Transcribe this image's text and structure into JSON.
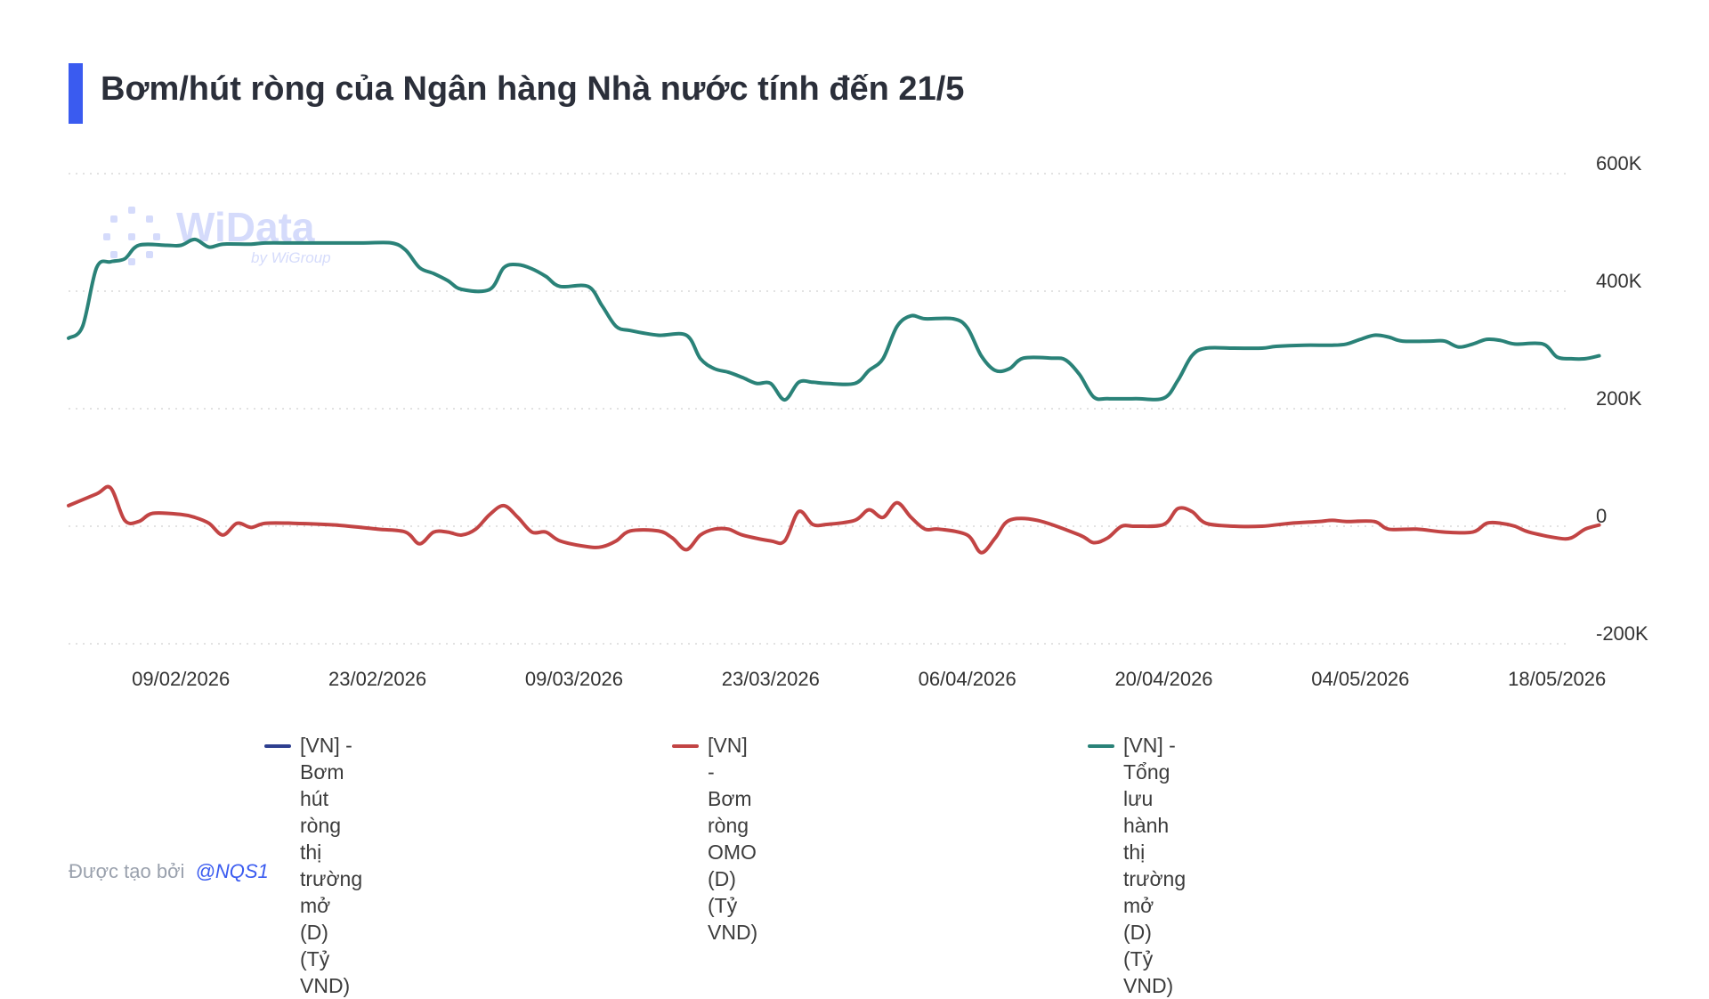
{
  "title": "Bơm/hút ròng của Ngân hàng Nhà nước tính đến 21/5",
  "watermark": {
    "brand": "WiData",
    "sub": "by WiGroup"
  },
  "footer": {
    "label": "Được tạo bởi",
    "author": "@NQS1"
  },
  "colors": {
    "accent": "#3a5bf0",
    "series_blue": "#2e3f8f",
    "series_red": "#c24444",
    "series_teal": "#2a8278",
    "grid": "#d9d9d9"
  },
  "chart_data": {
    "type": "line",
    "title": "Bơm/hút ròng của Ngân hàng Nhà nước tính đến 21/5",
    "ylim": [
      -200000,
      600000
    ],
    "y_ticks": [
      "600K",
      "400K",
      "200K",
      "0",
      "-200K"
    ],
    "y_tick_values": [
      600000,
      400000,
      200000,
      0,
      -200000
    ],
    "x_tick_labels": [
      "09/02/2026",
      "23/02/2026",
      "09/03/2026",
      "23/03/2026",
      "06/04/2026",
      "20/04/2026",
      "04/05/2026",
      "18/05/2026"
    ],
    "x_range": [
      "01/02/2026",
      "19/05/2026"
    ],
    "grid": true,
    "legend_position": "bottom",
    "series": [
      {
        "name": "[VN] - Bơm hút ròng thị trường mở\n(D) (Tỷ VND)",
        "color": "#2e3f8f",
        "points": []
      },
      {
        "name": "[VN] - Bơm ròng OMO (D) (Tỷ VND)",
        "color": "#c24444",
        "points": [
          [
            "01/02/2026",
            35000
          ],
          [
            "03/02/2026",
            55000
          ],
          [
            "04/02/2026",
            65000
          ],
          [
            "05/02/2026",
            10000
          ],
          [
            "06/02/2026",
            8000
          ],
          [
            "07/02/2026",
            22000
          ],
          [
            "09/02/2026",
            20000
          ],
          [
            "10/02/2026",
            15000
          ],
          [
            "11/02/2026",
            5000
          ],
          [
            "12/02/2026",
            -15000
          ],
          [
            "13/02/2026",
            5000
          ],
          [
            "14/02/2026",
            -2000
          ],
          [
            "15/02/2026",
            5000
          ],
          [
            "17/02/2026",
            5000
          ],
          [
            "20/02/2026",
            2000
          ],
          [
            "23/02/2026",
            -5000
          ],
          [
            "25/02/2026",
            -10000
          ],
          [
            "26/02/2026",
            -30000
          ],
          [
            "27/02/2026",
            -10000
          ],
          [
            "28/02/2026",
            -10000
          ],
          [
            "01/03/2026",
            -15000
          ],
          [
            "02/03/2026",
            -5000
          ],
          [
            "03/03/2026",
            20000
          ],
          [
            "04/03/2026",
            35000
          ],
          [
            "05/03/2026",
            15000
          ],
          [
            "06/03/2026",
            -10000
          ],
          [
            "07/03/2026",
            -10000
          ],
          [
            "08/03/2026",
            -25000
          ],
          [
            "10/03/2026",
            -35000
          ],
          [
            "11/03/2026",
            -35000
          ],
          [
            "12/03/2026",
            -25000
          ],
          [
            "13/03/2026",
            -8000
          ],
          [
            "15/03/2026",
            -8000
          ],
          [
            "16/03/2026",
            -20000
          ],
          [
            "17/03/2026",
            -40000
          ],
          [
            "18/03/2026",
            -15000
          ],
          [
            "19/03/2026",
            -5000
          ],
          [
            "20/03/2026",
            -5000
          ],
          [
            "21/03/2026",
            -15000
          ],
          [
            "23/03/2026",
            -25000
          ],
          [
            "24/03/2026",
            -25000
          ],
          [
            "25/03/2026",
            25000
          ],
          [
            "26/03/2026",
            3000
          ],
          [
            "27/03/2026",
            3000
          ],
          [
            "29/03/2026",
            10000
          ],
          [
            "30/03/2026",
            28000
          ],
          [
            "31/03/2026",
            15000
          ],
          [
            "01/04/2026",
            40000
          ],
          [
            "02/04/2026",
            15000
          ],
          [
            "03/04/2026",
            -5000
          ],
          [
            "04/04/2026",
            -5000
          ],
          [
            "06/04/2026",
            -15000
          ],
          [
            "07/04/2026",
            -45000
          ],
          [
            "08/04/2026",
            -20000
          ],
          [
            "09/04/2026",
            10000
          ],
          [
            "11/04/2026",
            10000
          ],
          [
            "14/04/2026",
            -15000
          ],
          [
            "15/04/2026",
            -28000
          ],
          [
            "16/04/2026",
            -20000
          ],
          [
            "17/04/2026",
            0
          ],
          [
            "18/04/2026",
            0
          ],
          [
            "20/04/2026",
            3000
          ],
          [
            "21/04/2026",
            30000
          ],
          [
            "22/04/2026",
            25000
          ],
          [
            "23/04/2026",
            5000
          ],
          [
            "25/04/2026",
            0
          ],
          [
            "27/04/2026",
            0
          ],
          [
            "29/04/2026",
            5000
          ],
          [
            "01/05/2026",
            8000
          ],
          [
            "02/05/2026",
            10000
          ],
          [
            "03/05/2026",
            8000
          ],
          [
            "05/05/2026",
            8000
          ],
          [
            "06/05/2026",
            -5000
          ],
          [
            "08/05/2026",
            -5000
          ],
          [
            "10/05/2026",
            -10000
          ],
          [
            "12/05/2026",
            -10000
          ],
          [
            "13/05/2026",
            5000
          ],
          [
            "14/05/2026",
            5000
          ],
          [
            "15/05/2026",
            0
          ],
          [
            "16/05/2026",
            -10000
          ],
          [
            "18/05/2026",
            -20000
          ],
          [
            "19/05/2026",
            -20000
          ],
          [
            "20/05/2026",
            -5000
          ],
          [
            "21/05/2026",
            2000
          ]
        ]
      },
      {
        "name": "[VN] - Tổng lưu hành thị trường mở\n(D) (Tỷ VND)",
        "color": "#2a8278",
        "points": [
          [
            "01/02/2026",
            320000
          ],
          [
            "02/02/2026",
            340000
          ],
          [
            "03/02/2026",
            440000
          ],
          [
            "04/02/2026",
            450000
          ],
          [
            "05/02/2026",
            455000
          ],
          [
            "06/02/2026",
            478000
          ],
          [
            "08/02/2026",
            478000
          ],
          [
            "09/02/2026",
            478000
          ],
          [
            "10/02/2026",
            488000
          ],
          [
            "11/02/2026",
            475000
          ],
          [
            "12/02/2026",
            480000
          ],
          [
            "14/02/2026",
            480000
          ],
          [
            "15/02/2026",
            482000
          ],
          [
            "17/02/2026",
            482000
          ],
          [
            "19/02/2026",
            482000
          ],
          [
            "22/02/2026",
            482000
          ],
          [
            "24/02/2026",
            482000
          ],
          [
            "25/02/2026",
            470000
          ],
          [
            "26/02/2026",
            440000
          ],
          [
            "27/02/2026",
            430000
          ],
          [
            "28/02/2026",
            418000
          ],
          [
            "01/03/2026",
            403000
          ],
          [
            "03/03/2026",
            403000
          ],
          [
            "04/03/2026",
            440000
          ],
          [
            "05/03/2026",
            445000
          ],
          [
            "06/03/2026",
            438000
          ],
          [
            "07/03/2026",
            425000
          ],
          [
            "08/03/2026",
            408000
          ],
          [
            "10/03/2026",
            408000
          ],
          [
            "11/03/2026",
            375000
          ],
          [
            "12/03/2026",
            340000
          ],
          [
            "13/03/2026",
            333000
          ],
          [
            "15/03/2026",
            325000
          ],
          [
            "17/03/2026",
            325000
          ],
          [
            "18/03/2026",
            285000
          ],
          [
            "19/03/2026",
            268000
          ],
          [
            "20/03/2026",
            262000
          ],
          [
            "21/03/2026",
            253000
          ],
          [
            "22/03/2026",
            243000
          ],
          [
            "23/03/2026",
            243000
          ],
          [
            "24/03/2026",
            215000
          ],
          [
            "25/03/2026",
            245000
          ],
          [
            "26/03/2026",
            245000
          ],
          [
            "27/03/2026",
            243000
          ],
          [
            "29/03/2026",
            243000
          ],
          [
            "30/03/2026",
            265000
          ],
          [
            "31/03/2026",
            285000
          ],
          [
            "01/04/2026",
            340000
          ],
          [
            "02/04/2026",
            358000
          ],
          [
            "03/04/2026",
            353000
          ],
          [
            "05/04/2026",
            353000
          ],
          [
            "06/04/2026",
            338000
          ],
          [
            "07/04/2026",
            290000
          ],
          [
            "08/04/2026",
            265000
          ],
          [
            "09/04/2026",
            268000
          ],
          [
            "10/04/2026",
            286000
          ],
          [
            "12/04/2026",
            286000
          ],
          [
            "13/04/2026",
            283000
          ],
          [
            "14/04/2026",
            258000
          ],
          [
            "15/04/2026",
            220000
          ],
          [
            "16/04/2026",
            217000
          ],
          [
            "18/04/2026",
            217000
          ],
          [
            "20/04/2026",
            218000
          ],
          [
            "21/04/2026",
            248000
          ],
          [
            "22/04/2026",
            290000
          ],
          [
            "23/04/2026",
            303000
          ],
          [
            "25/04/2026",
            303000
          ],
          [
            "27/04/2026",
            303000
          ],
          [
            "28/04/2026",
            306000
          ],
          [
            "30/04/2026",
            308000
          ],
          [
            "02/05/2026",
            308000
          ],
          [
            "03/05/2026",
            310000
          ],
          [
            "04/05/2026",
            318000
          ],
          [
            "05/05/2026",
            325000
          ],
          [
            "06/05/2026",
            322000
          ],
          [
            "07/05/2026",
            315000
          ],
          [
            "09/05/2026",
            315000
          ],
          [
            "10/05/2026",
            315000
          ],
          [
            "11/05/2026",
            305000
          ],
          [
            "12/05/2026",
            310000
          ],
          [
            "13/05/2026",
            318000
          ],
          [
            "14/05/2026",
            316000
          ],
          [
            "15/05/2026",
            310000
          ],
          [
            "17/05/2026",
            310000
          ],
          [
            "18/05/2026",
            288000
          ],
          [
            "19/05/2026",
            285000
          ],
          [
            "20/05/2026",
            285000
          ],
          [
            "21/05/2026",
            290000
          ]
        ]
      }
    ]
  }
}
